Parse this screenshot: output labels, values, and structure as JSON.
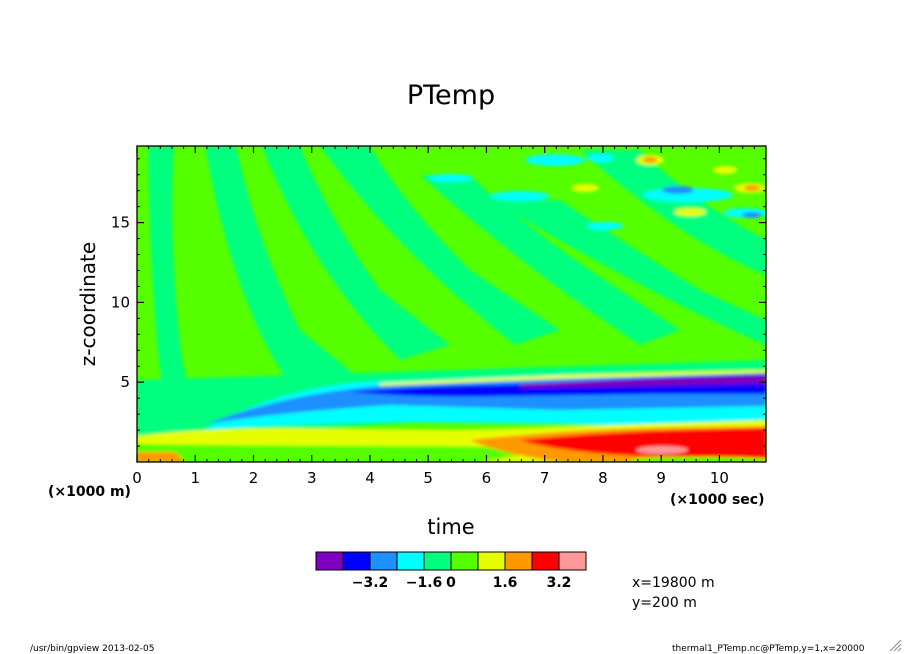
{
  "chart_data": {
    "type": "heatmap",
    "title": "PTemp",
    "xlabel": "time",
    "ylabel": "z-coordinate",
    "x_unit_label": "(×1000 sec)",
    "y_unit_label": "(×1000 m)",
    "xlim": [
      0,
      10.8
    ],
    "ylim": [
      0,
      19.8
    ],
    "x_ticks": [
      "0",
      "1",
      "2",
      "3",
      "4",
      "5",
      "6",
      "7",
      "8",
      "9",
      "10"
    ],
    "y_ticks": [
      "5",
      "10",
      "15"
    ],
    "colorbar": {
      "colors": [
        "#7f00bf",
        "#0000ff",
        "#1e90ff",
        "#00ffff",
        "#00ff7f",
        "#55ff00",
        "#e6ff00",
        "#ff9900",
        "#ff0000",
        "#ff9999"
      ],
      "labels": [
        "−3.2",
        "−1.6",
        "0",
        "1.6",
        "3.2"
      ]
    },
    "features": [
      {
        "desc": "negative band",
        "start": [
          1.2,
          2.3
        ],
        "end": [
          10.8,
          5.5
        ],
        "value": "-3.2 to -1.6"
      },
      {
        "desc": "positive layer near ground",
        "x": [
          5.5,
          10.8
        ],
        "z": [
          0.3,
          2.0
        ],
        "value": "1.6 to 3.2+"
      }
    ]
  },
  "annotations": {
    "x_point": "x=19800 m",
    "y_point": "y=200 m"
  },
  "footer": {
    "left": "/usr/bin/gpview  2013-02-05",
    "right": "thermal1_PTemp.nc@PTemp,y=1,x=20000"
  }
}
